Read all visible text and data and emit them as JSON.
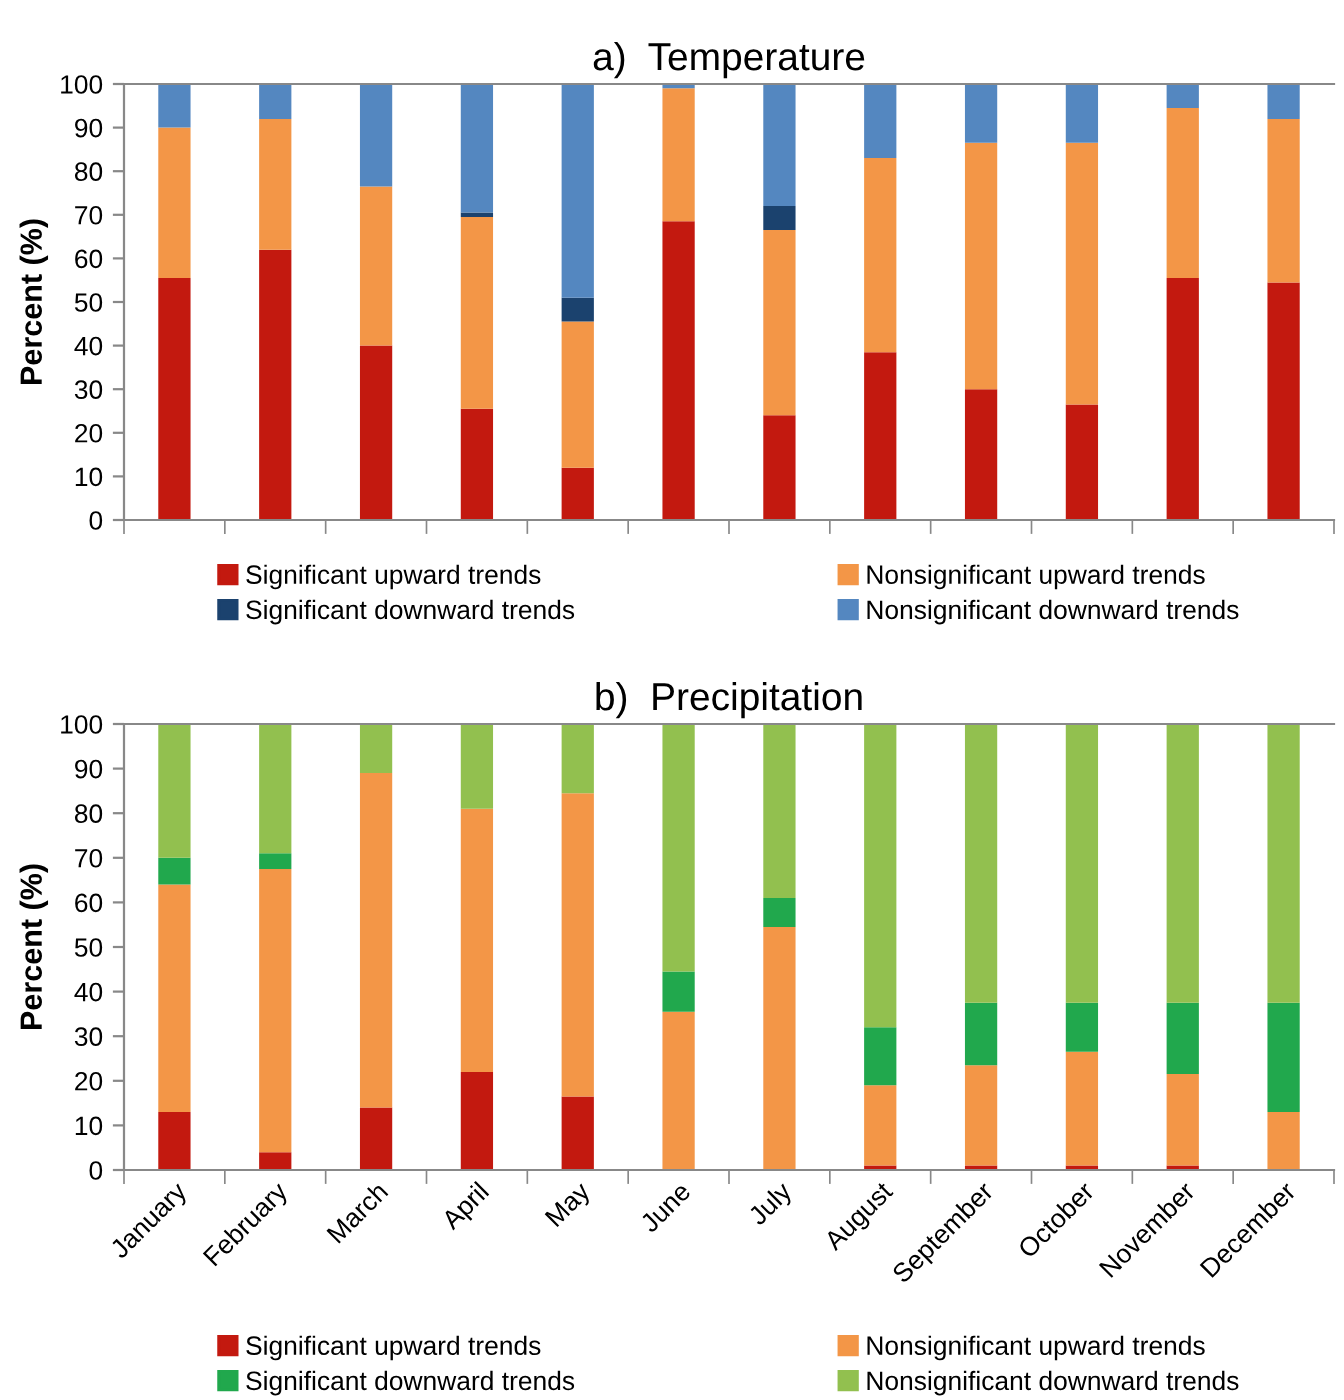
{
  "chart_data": [
    {
      "type": "bar",
      "stacked": true,
      "title": "a)  Temperature",
      "ylabel": "Percent (%)",
      "categories": [
        null,
        null,
        null,
        null,
        null,
        null,
        null,
        null,
        null,
        null,
        null,
        null
      ],
      "ylim": [
        0,
        100
      ],
      "yticks": [
        0,
        10,
        20,
        30,
        40,
        50,
        60,
        70,
        80,
        90,
        100
      ],
      "grid": false,
      "legend": "bottom",
      "series": [
        {
          "name": "Significant upward trends",
          "color": "#c3190f",
          "values": [
            55.5,
            62,
            40,
            25.5,
            12,
            68.5,
            24,
            38.5,
            30,
            26.5,
            55.5,
            54.5
          ]
        },
        {
          "name": "Nonsignificant upward trends",
          "color": "#f39647",
          "values": [
            34.5,
            30,
            36.5,
            44,
            33.5,
            30.5,
            42.5,
            44.5,
            56.5,
            60,
            39,
            37.5
          ]
        },
        {
          "name": "Significant downward trends",
          "color": "#1b426e",
          "values": [
            0,
            0,
            0,
            1,
            5.5,
            0,
            5.5,
            0,
            0,
            0,
            0,
            0
          ]
        },
        {
          "name": "Nonsignificant downward trends",
          "color": "#5487c0",
          "values": [
            10,
            8,
            23.5,
            29.5,
            49,
            1,
            28,
            17,
            13.5,
            13.5,
            5.5,
            8
          ]
        }
      ]
    },
    {
      "type": "bar",
      "stacked": true,
      "title": "b)  Precipitation",
      "ylabel": "Percent (%)",
      "categories": [
        "January",
        "February",
        "March",
        "April",
        "May",
        "June",
        "July",
        "August",
        "September",
        "October",
        "November",
        "December"
      ],
      "ylim": [
        0,
        100
      ],
      "yticks": [
        0,
        10,
        20,
        30,
        40,
        50,
        60,
        70,
        80,
        90,
        100
      ],
      "grid": false,
      "legend": "bottom",
      "series": [
        {
          "name": "Significant upward trends",
          "color": "#c3190f",
          "values": [
            13,
            4,
            14,
            22,
            16.5,
            0,
            0,
            1,
            1,
            1,
            1,
            0
          ]
        },
        {
          "name": "Nonsignificant upward trends",
          "color": "#f39647",
          "values": [
            51,
            63.5,
            75,
            59,
            68,
            35.5,
            54.5,
            18,
            22.5,
            25.5,
            20.5,
            13
          ]
        },
        {
          "name": "Significant downward trends",
          "color": "#21a84d",
          "values": [
            6,
            3.5,
            0,
            0,
            0,
            9,
            6.5,
            13,
            14,
            11,
            16,
            24.5
          ]
        },
        {
          "name": "Nonsignificant downward trends",
          "color": "#92c04f",
          "values": [
            30,
            29,
            11,
            19,
            15.5,
            55.5,
            39,
            68,
            62.5,
            62.5,
            62.5,
            62.5
          ]
        }
      ]
    }
  ]
}
